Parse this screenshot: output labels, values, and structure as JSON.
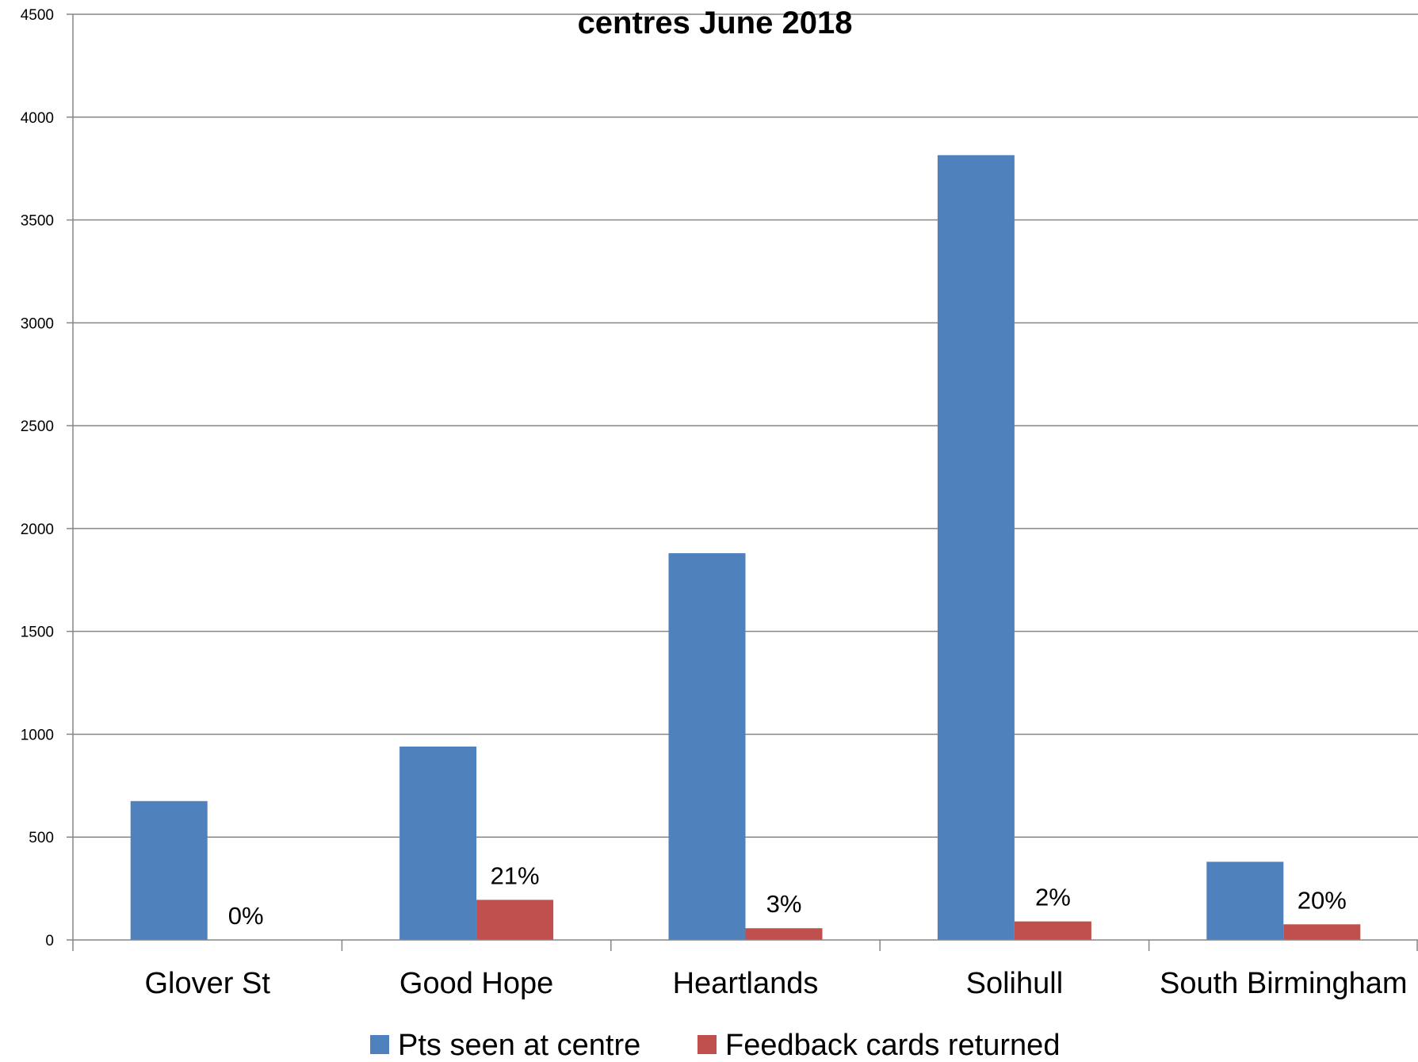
{
  "chart_data": {
    "type": "bar",
    "title": "centres June 2018",
    "categories": [
      "Glover St",
      "Good Hope",
      "Heartlands",
      "Solihull",
      "South Birmingham"
    ],
    "series": [
      {
        "name": "Pts seen at centre",
        "values": [
          675,
          940,
          1880,
          3815,
          380
        ],
        "color": "#4F81BD"
      },
      {
        "name": "Feedback cards returned",
        "values": [
          0,
          195,
          57,
          90,
          76
        ],
        "color": "#C0504D",
        "labels": [
          "0%",
          "21%",
          "3%",
          "2%",
          "20%"
        ]
      }
    ],
    "ylim": [
      0,
      4500
    ],
    "yticks": [
      0,
      500,
      1000,
      1500,
      2000,
      2500,
      3000,
      3500,
      4000,
      4500
    ],
    "grid": true,
    "legend_position": "bottom"
  }
}
